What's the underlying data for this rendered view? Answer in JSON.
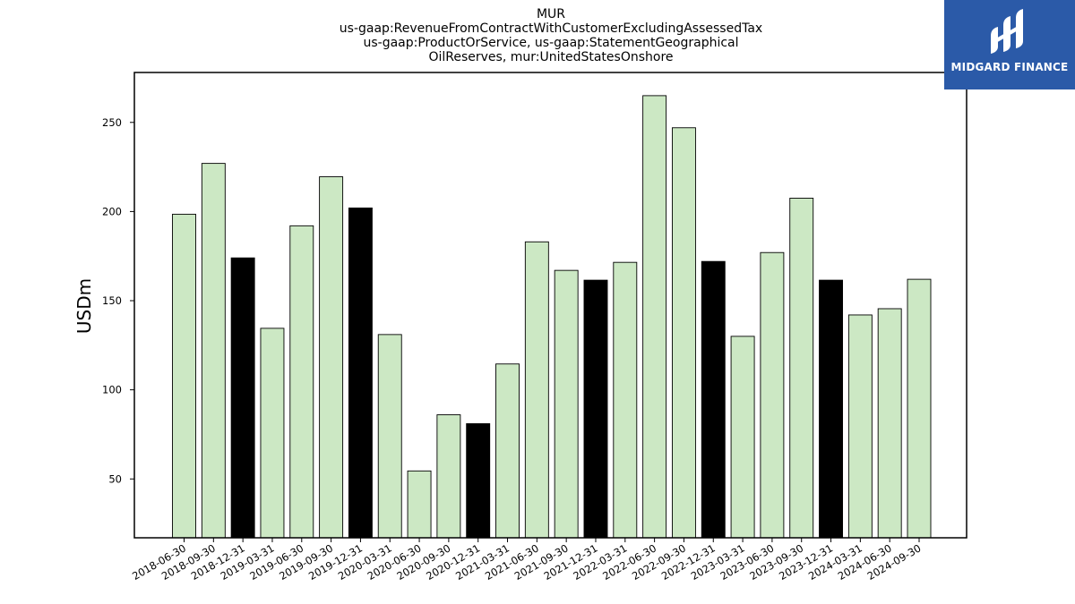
{
  "chart_data": {
    "type": "bar",
    "title_lines": [
      "MUR",
      "us-gaap:RevenueFromContractWithCustomerExcludingAssessedTax",
      "us-gaap:ProductOrService, us-gaap:StatementGeographical",
      "OilReserves, mur:UnitedStatesOnshore"
    ],
    "xlabel": "",
    "ylabel": "USDm",
    "ylim": [
      17,
      278
    ],
    "yticks": [
      50,
      100,
      150,
      200,
      250
    ],
    "categories": [
      "2018-06-30",
      "2018-09-30",
      "2018-12-31",
      "2019-03-31",
      "2019-06-30",
      "2019-09-30",
      "2019-12-31",
      "2020-03-31",
      "2020-06-30",
      "2020-09-30",
      "2020-12-31",
      "2021-03-31",
      "2021-06-30",
      "2021-09-30",
      "2021-12-31",
      "2022-03-31",
      "2022-06-30",
      "2022-09-30",
      "2022-12-31",
      "2023-03-31",
      "2023-06-30",
      "2023-09-30",
      "2023-12-31",
      "2024-03-31",
      "2024-06-30",
      "2024-09-30"
    ],
    "values": [
      198.5,
      227.0,
      174.0,
      134.5,
      192.0,
      219.5,
      202.0,
      131.0,
      54.5,
      86.0,
      81.0,
      114.5,
      183.0,
      167.0,
      161.5,
      171.5,
      265.0,
      247.0,
      172.0,
      130.0,
      177.0,
      207.5,
      161.5,
      142.0,
      145.5,
      162.0
    ],
    "highlight": [
      false,
      false,
      true,
      false,
      false,
      false,
      true,
      false,
      false,
      false,
      true,
      false,
      false,
      false,
      true,
      false,
      false,
      false,
      true,
      false,
      false,
      false,
      true,
      false,
      false,
      false
    ],
    "colors": {
      "bar": "#cce8c4",
      "highlight": "#000000",
      "edge": "#000000"
    },
    "grid": false,
    "legend": "none"
  },
  "logo": {
    "text": "MIDGARD FINANCE",
    "background": "#2b5aa8"
  }
}
